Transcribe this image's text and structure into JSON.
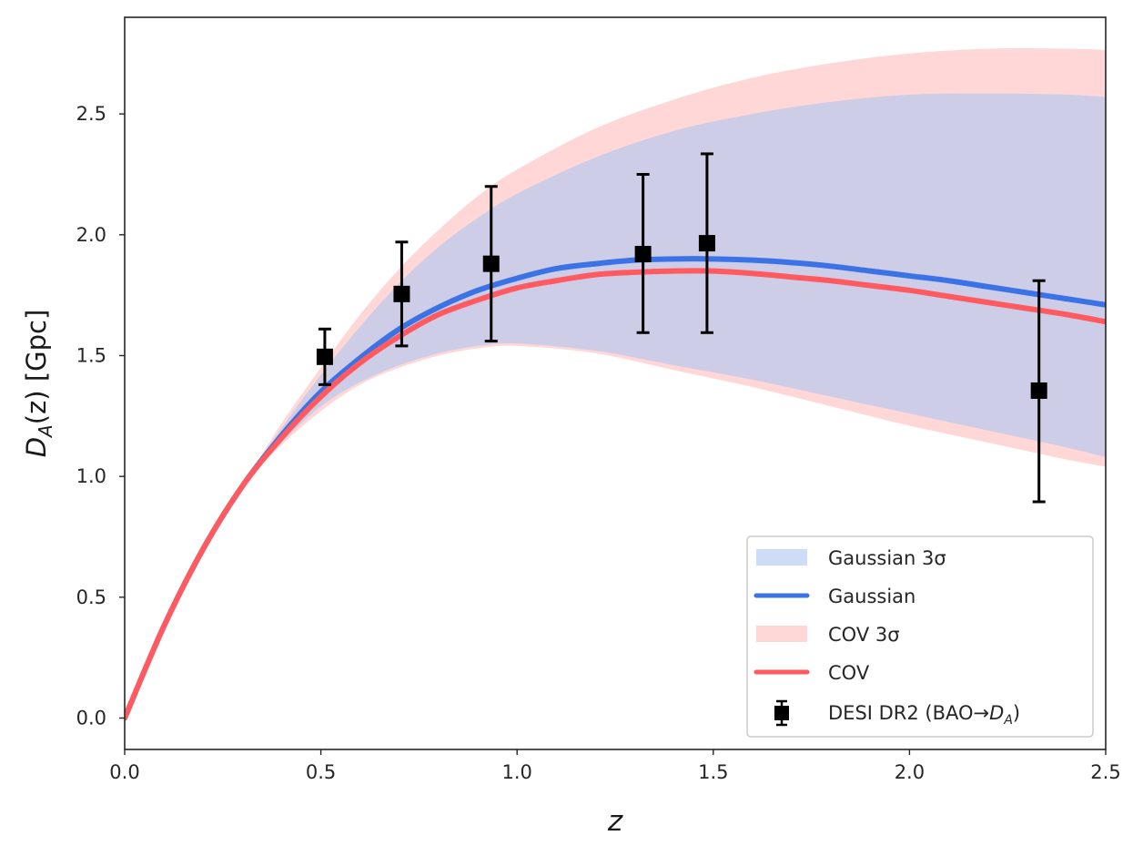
{
  "chart_data": {
    "type": "line",
    "title": "",
    "xlabel": "z",
    "ylabel_main": "D",
    "ylabel_sub": "A",
    "ylabel_rest": "(z) [Gpc]",
    "xlim": [
      0.0,
      2.5
    ],
    "ylim": [
      -0.13,
      2.9
    ],
    "xticks": [
      0.0,
      0.5,
      1.0,
      1.5,
      2.0,
      2.5
    ],
    "xtick_labels": [
      "0.0",
      "0.5",
      "1.0",
      "1.5",
      "2.0",
      "2.5"
    ],
    "yticks": [
      0.0,
      0.5,
      1.0,
      1.5,
      2.0,
      2.5
    ],
    "ytick_labels": [
      "0.0",
      "0.5",
      "1.0",
      "1.5",
      "2.0",
      "2.5"
    ],
    "grid": false,
    "legend_position": "lower-right",
    "series": [
      {
        "name": "Gaussian",
        "color": "#3b73e6",
        "x": [
          0.0,
          0.1,
          0.2,
          0.3,
          0.4,
          0.5,
          0.6,
          0.7,
          0.8,
          0.9,
          1.0,
          1.1,
          1.2,
          1.3,
          1.4,
          1.5,
          1.6,
          1.7,
          1.8,
          1.9,
          2.0,
          2.1,
          2.2,
          2.3,
          2.4,
          2.5
        ],
        "y": [
          0.0,
          0.38,
          0.7,
          0.96,
          1.17,
          1.35,
          1.49,
          1.61,
          1.7,
          1.77,
          1.82,
          1.86,
          1.88,
          1.895,
          1.9,
          1.9,
          1.895,
          1.885,
          1.87,
          1.85,
          1.83,
          1.81,
          1.785,
          1.76,
          1.735,
          1.71
        ]
      },
      {
        "name": "COV",
        "color": "#ff5a5f",
        "x": [
          0.0,
          0.1,
          0.2,
          0.3,
          0.4,
          0.5,
          0.6,
          0.7,
          0.8,
          0.9,
          1.0,
          1.1,
          1.2,
          1.3,
          1.4,
          1.5,
          1.6,
          1.7,
          1.8,
          1.9,
          2.0,
          2.1,
          2.2,
          2.3,
          2.4,
          2.5
        ],
        "y": [
          0.0,
          0.38,
          0.7,
          0.96,
          1.16,
          1.33,
          1.47,
          1.58,
          1.67,
          1.73,
          1.78,
          1.81,
          1.835,
          1.845,
          1.85,
          1.85,
          1.84,
          1.825,
          1.81,
          1.79,
          1.77,
          1.745,
          1.72,
          1.695,
          1.67,
          1.64
        ]
      }
    ],
    "bands": [
      {
        "name": "Gaussian 3σ",
        "color": "#aec6f2",
        "opacity": 0.6,
        "x": [
          0.0,
          0.1,
          0.2,
          0.3,
          0.4,
          0.5,
          0.6,
          0.7,
          0.8,
          0.9,
          1.0,
          1.2,
          1.4,
          1.6,
          1.8,
          2.0,
          2.2,
          2.4,
          2.5
        ],
        "upper": [
          0.0,
          0.38,
          0.7,
          0.96,
          1.2,
          1.42,
          1.62,
          1.8,
          1.95,
          2.07,
          2.17,
          2.32,
          2.43,
          2.5,
          2.55,
          2.58,
          2.585,
          2.58,
          2.57
        ],
        "lower": [
          0.0,
          0.38,
          0.7,
          0.96,
          1.14,
          1.29,
          1.39,
          1.46,
          1.51,
          1.54,
          1.55,
          1.52,
          1.46,
          1.4,
          1.33,
          1.26,
          1.19,
          1.12,
          1.08
        ]
      },
      {
        "name": "COV 3σ",
        "color": "#ff9a9a",
        "opacity": 0.4,
        "x": [
          0.0,
          0.1,
          0.2,
          0.3,
          0.4,
          0.5,
          0.6,
          0.7,
          0.8,
          0.9,
          1.0,
          1.2,
          1.4,
          1.6,
          1.8,
          2.0,
          2.2,
          2.4,
          2.5
        ],
        "upper": [
          0.0,
          0.38,
          0.7,
          0.96,
          1.22,
          1.45,
          1.67,
          1.86,
          2.02,
          2.16,
          2.27,
          2.44,
          2.56,
          2.65,
          2.71,
          2.75,
          2.77,
          2.77,
          2.765
        ],
        "lower": [
          0.0,
          0.38,
          0.7,
          0.96,
          1.13,
          1.27,
          1.38,
          1.45,
          1.5,
          1.53,
          1.54,
          1.51,
          1.44,
          1.37,
          1.29,
          1.21,
          1.14,
          1.07,
          1.04
        ]
      }
    ],
    "points": {
      "name": "DESI DR2 (BAO→D_A)",
      "color": "#000000",
      "x": [
        0.51,
        0.706,
        0.934,
        1.321,
        1.484,
        2.33
      ],
      "y": [
        1.495,
        1.755,
        1.88,
        1.92,
        1.965,
        1.355
      ],
      "err_lower": [
        0.115,
        0.215,
        0.32,
        0.325,
        0.37,
        0.46
      ],
      "err_upper": [
        0.115,
        0.215,
        0.32,
        0.33,
        0.37,
        0.455
      ]
    },
    "legend": [
      {
        "label": "Gaussian 3σ",
        "kind": "band",
        "color": "#aec6f2",
        "opacity": 0.6
      },
      {
        "label": "Gaussian",
        "kind": "line",
        "color": "#3b73e6"
      },
      {
        "label": "COV 3σ",
        "kind": "band",
        "color": "#ff9a9a",
        "opacity": 0.4
      },
      {
        "label": "COV",
        "kind": "line",
        "color": "#ff5a5f"
      },
      {
        "label": "DESI DR2 (BAO→",
        "label_math": "D",
        "label_math_sub": "A",
        "label_tail": ")",
        "kind": "errorbar",
        "color": "#000000"
      }
    ]
  }
}
